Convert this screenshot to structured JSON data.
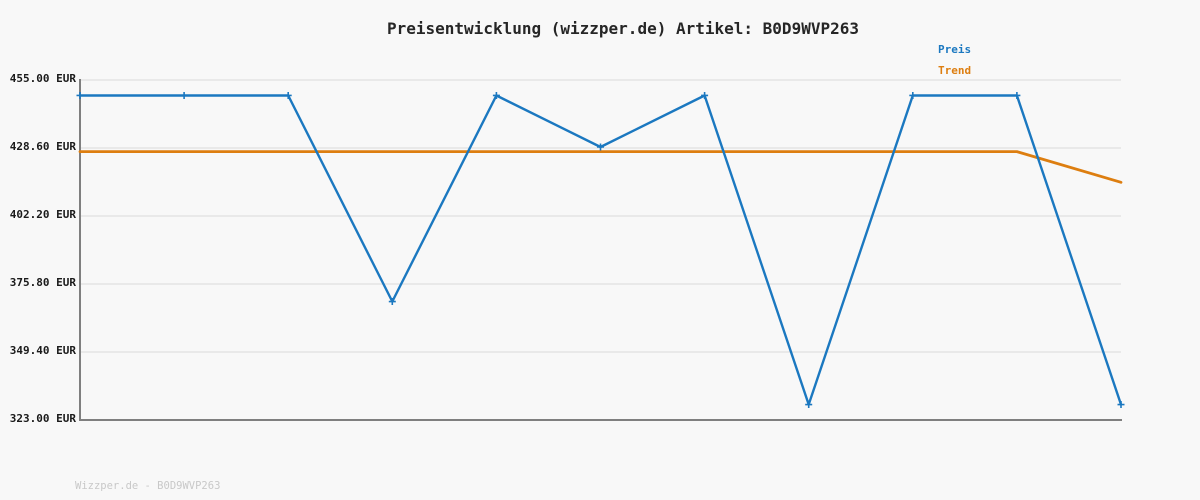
{
  "title": "Preisentwicklung (wizzper.de) Artikel: B0D9WVP263",
  "watermark": "Wizzper.de - B0D9WVP263",
  "legend": {
    "preis_label": "Preis",
    "trend_label": "Trend"
  },
  "colors": {
    "preis": "#1b78c0",
    "trend": "#dd7e10",
    "grid": "#e4e4e4",
    "axis": "#7f7f7f",
    "background": "#f8f8f8",
    "tick_text": "#1a1a1a",
    "title_text": "#262626",
    "watermark_text": "#c8c8c8"
  },
  "chart_data": {
    "type": "line",
    "title": "Preisentwicklung (wizzper.de) Artikel: B0D9WVP263",
    "xlabel": "",
    "ylabel": "",
    "x_tick_labels_visible": false,
    "point_count": 11,
    "series": [
      {
        "name": "Preis",
        "color_key": "preis",
        "markers": true,
        "values": [
          449.0,
          449.0,
          449.0,
          369.0,
          449.0,
          429.0,
          449.0,
          329.0,
          449.0,
          449.0,
          329.0
        ]
      },
      {
        "name": "Trend",
        "color_key": "trend",
        "markers": false,
        "values": [
          427.2,
          427.2,
          427.2,
          427.2,
          427.2,
          427.2,
          427.2,
          427.2,
          427.2,
          427.2,
          415.3
        ]
      }
    ],
    "ylim": [
      323.0,
      455.0
    ],
    "yticks": [
      {
        "value": 455.0,
        "label": "455.00 EUR"
      },
      {
        "value": 428.6,
        "label": "428.60 EUR"
      },
      {
        "value": 402.2,
        "label": "402.20 EUR"
      },
      {
        "value": 375.8,
        "label": "375.80 EUR"
      },
      {
        "value": 349.4,
        "label": "349.40 EUR"
      },
      {
        "value": 323.0,
        "label": "323.00 EUR"
      }
    ],
    "grid": "horizontal",
    "legend_position": "top-right",
    "unit": "EUR"
  }
}
